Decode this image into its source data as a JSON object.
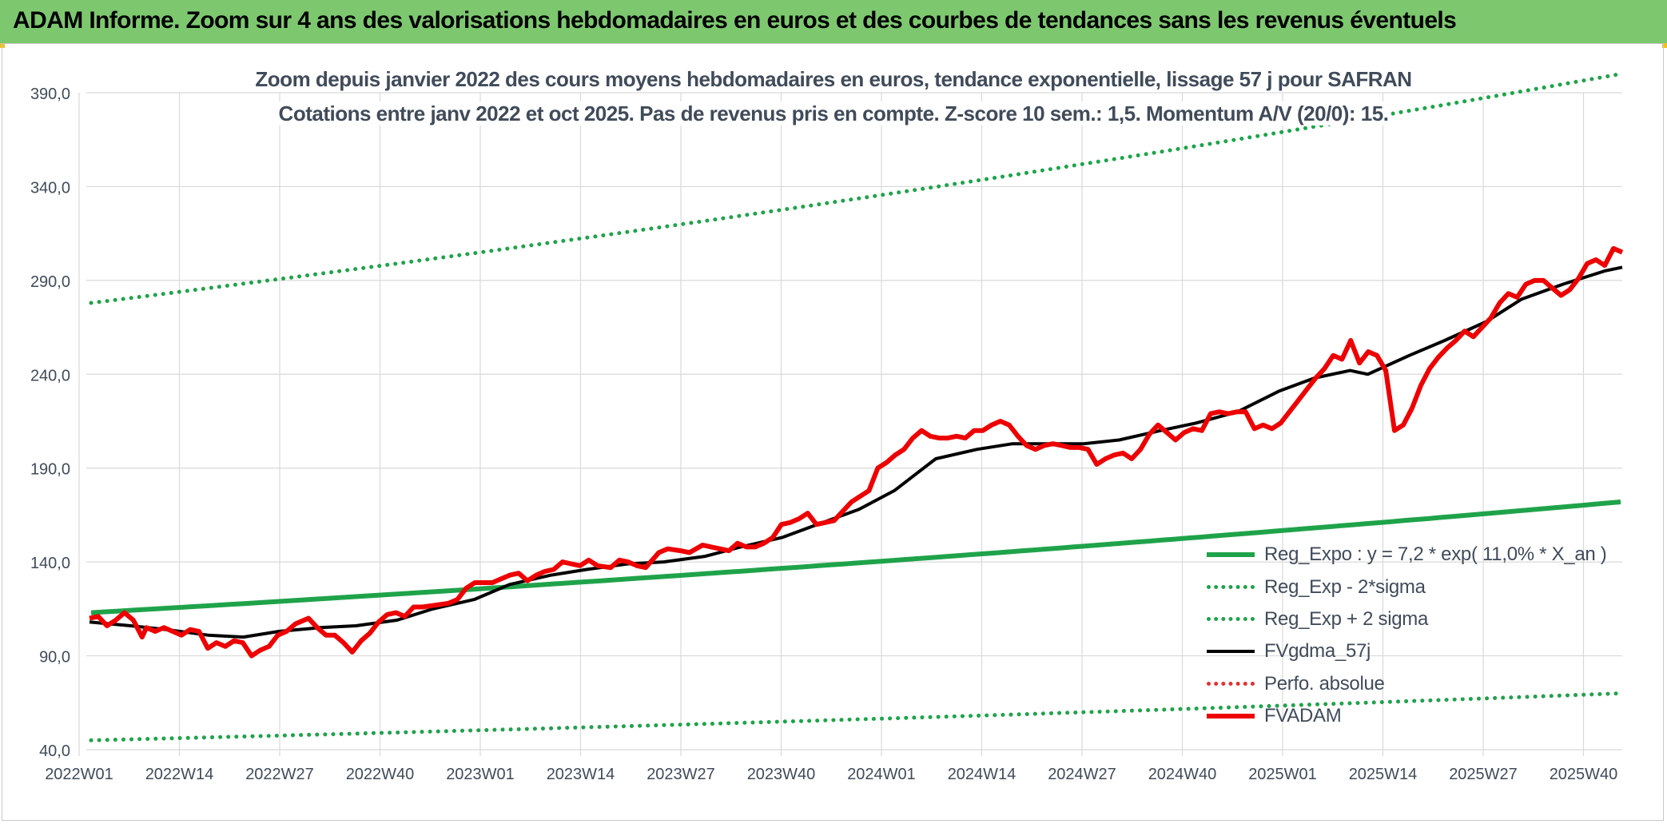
{
  "banner": {
    "title": "ADAM Informe. Zoom sur 4 ans des valorisations hebdomadaires en euros et des courbes de tendances sans les revenus éventuels",
    "color": "#7dc86f"
  },
  "chart_data": {
    "type": "line",
    "title": "Zoom depuis janvier 2022 des cours moyens hebdomadaires en euros, tendance exponentielle, lissage 57 j pour SAFRAN",
    "subtitle": "Cotations entre janv 2022 et oct 2025. Pas de revenus pris en compte. Z-score 10 sem.: 1,5. Momentum A/V (20/0): 15.",
    "xlabel": "",
    "ylabel": "",
    "ylim": [
      40,
      400
    ],
    "y_ticks": [
      "40,0",
      "90,0",
      "140,0",
      "190,0",
      "240,0",
      "290,0",
      "340,0",
      "390,0"
    ],
    "y_tick_values": [
      40,
      90,
      140,
      190,
      240,
      290,
      340,
      390
    ],
    "x_tick_labels": [
      "2022W01",
      "2022W14",
      "2022W27",
      "2022W40",
      "2023W01",
      "2023W14",
      "2023W27",
      "2023W40",
      "2024W01",
      "2024W14",
      "2024W27",
      "2024W40",
      "2025W01",
      "2025W14",
      "2025W27",
      "2025W40"
    ],
    "grid": true,
    "legend_position": "bottom-right",
    "weeks_total": 198,
    "series": [
      {
        "name": "Reg_Expo : y = 7,2 * exp( 11,0% *  X_an )",
        "color": "#1fa34a",
        "style": "solid-thick",
        "start": 113,
        "end": 172,
        "log_linear": true
      },
      {
        "name": "Reg_Exp - 2*sigma",
        "color": "#1fa34a",
        "style": "dotted",
        "start": 45,
        "end": 70,
        "log_linear": true
      },
      {
        "name": "Reg_Exp + 2 sigma",
        "color": "#1fa34a",
        "style": "dotted",
        "start": 278,
        "end": 400,
        "cap": 400,
        "log_linear": true
      },
      {
        "name": "FVgdma_57j",
        "color": "#000000",
        "style": "solid",
        "points": [
          [
            0,
            108
          ],
          [
            7,
            106
          ],
          [
            13,
            104
          ],
          [
            20,
            101
          ],
          [
            26,
            100
          ],
          [
            32,
            103
          ],
          [
            39,
            105
          ],
          [
            45,
            106
          ],
          [
            52,
            109
          ],
          [
            58,
            115
          ],
          [
            65,
            120
          ],
          [
            71,
            128
          ],
          [
            78,
            133
          ],
          [
            84,
            136
          ],
          [
            91,
            139
          ],
          [
            97,
            140
          ],
          [
            104,
            143
          ],
          [
            110,
            148
          ],
          [
            117,
            153
          ],
          [
            123,
            160
          ],
          [
            130,
            168
          ],
          [
            136,
            178
          ],
          [
            143,
            195
          ],
          [
            150,
            200
          ],
          [
            156,
            203
          ],
          [
            162,
            203
          ],
          [
            168,
            203
          ],
          [
            174,
            205
          ],
          [
            181,
            210
          ],
          [
            187,
            214
          ],
          [
            194,
            220
          ],
          [
            201,
            231
          ],
          [
            207,
            238
          ],
          [
            213,
            242
          ],
          [
            216,
            240
          ],
          [
            223,
            250
          ],
          [
            229,
            258
          ],
          [
            236,
            268
          ],
          [
            242,
            280
          ],
          [
            249,
            288
          ],
          [
            256,
            295
          ],
          [
            259,
            297
          ]
        ]
      },
      {
        "name": "Perfo. absolue",
        "color": "#e53030",
        "style": "dotted",
        "points": []
      },
      {
        "name": "FVADAM",
        "color": "#ee0000",
        "style": "solid-thick",
        "points": [
          [
            0,
            110
          ],
          [
            2,
            111
          ],
          [
            4,
            106
          ],
          [
            6,
            109
          ],
          [
            8,
            113
          ],
          [
            10,
            109
          ],
          [
            12,
            100
          ],
          [
            13,
            105
          ],
          [
            15,
            103
          ],
          [
            17,
            105
          ],
          [
            19,
            103
          ],
          [
            21,
            101
          ],
          [
            23,
            104
          ],
          [
            25,
            103
          ],
          [
            27,
            94
          ],
          [
            29,
            97
          ],
          [
            31,
            95
          ],
          [
            33,
            98
          ],
          [
            35,
            97
          ],
          [
            37,
            90
          ],
          [
            39,
            93
          ],
          [
            41,
            95
          ],
          [
            43,
            101
          ],
          [
            45,
            103
          ],
          [
            47,
            107
          ],
          [
            50,
            110
          ],
          [
            52,
            105
          ],
          [
            54,
            101
          ],
          [
            56,
            101
          ],
          [
            58,
            97
          ],
          [
            60,
            92
          ],
          [
            62,
            98
          ],
          [
            64,
            102
          ],
          [
            66,
            108
          ],
          [
            68,
            112
          ],
          [
            70,
            113
          ],
          [
            72,
            111
          ],
          [
            74,
            116
          ],
          [
            76,
            116
          ],
          [
            79,
            117
          ],
          [
            82,
            118
          ],
          [
            84,
            120
          ],
          [
            86,
            126
          ],
          [
            88,
            129
          ],
          [
            90,
            129
          ],
          [
            92,
            129
          ],
          [
            94,
            131
          ],
          [
            96,
            133
          ],
          [
            98,
            134
          ],
          [
            100,
            130
          ],
          [
            102,
            133
          ],
          [
            104,
            135
          ],
          [
            106,
            136
          ],
          [
            108,
            140
          ],
          [
            110,
            139
          ],
          [
            112,
            138
          ],
          [
            114,
            141
          ],
          [
            116,
            138
          ],
          [
            119,
            137
          ],
          [
            121,
            141
          ],
          [
            123,
            140
          ],
          [
            125,
            138
          ],
          [
            127,
            137
          ],
          [
            130,
            145
          ],
          [
            132,
            147
          ],
          [
            135,
            146
          ],
          [
            137,
            145
          ],
          [
            140,
            149
          ],
          [
            142,
            148
          ],
          [
            144,
            147
          ],
          [
            146,
            146
          ],
          [
            148,
            150
          ],
          [
            150,
            148
          ],
          [
            152,
            148
          ],
          [
            154,
            150
          ],
          [
            156,
            153
          ],
          [
            158,
            160
          ],
          [
            160,
            161
          ],
          [
            162,
            163
          ],
          [
            164,
            166
          ],
          [
            166,
            160
          ],
          [
            168,
            161
          ],
          [
            170,
            162
          ],
          [
            172,
            167
          ],
          [
            174,
            172
          ],
          [
            176,
            175
          ],
          [
            178,
            178
          ],
          [
            180,
            190
          ],
          [
            182,
            193
          ],
          [
            184,
            197
          ],
          [
            186,
            200
          ],
          [
            188,
            206
          ],
          [
            190,
            210
          ],
          [
            192,
            207
          ],
          [
            194,
            206
          ],
          [
            196,
            206
          ],
          [
            198,
            207
          ],
          [
            200,
            206
          ],
          [
            202,
            210
          ],
          [
            204,
            210
          ],
          [
            206,
            213
          ],
          [
            208,
            215
          ],
          [
            210,
            213
          ],
          [
            212,
            207
          ],
          [
            214,
            202
          ],
          [
            216,
            200
          ],
          [
            218,
            202
          ],
          [
            220,
            203
          ],
          [
            222,
            202
          ],
          [
            224,
            201
          ],
          [
            226,
            201
          ],
          [
            228,
            200
          ],
          [
            230,
            192
          ],
          [
            232,
            195
          ],
          [
            234,
            197
          ],
          [
            236,
            198
          ],
          [
            238,
            195
          ],
          [
            240,
            200
          ],
          [
            242,
            208
          ],
          [
            244,
            213
          ],
          [
            246,
            209
          ],
          [
            248,
            205
          ],
          [
            250,
            209
          ],
          [
            252,
            211
          ],
          [
            254,
            210
          ],
          [
            256,
            219
          ],
          [
            258,
            220
          ],
          [
            260,
            219
          ],
          [
            262,
            220
          ],
          [
            264,
            220
          ],
          [
            266,
            211
          ],
          [
            268,
            213
          ],
          [
            270,
            211
          ],
          [
            272,
            214
          ],
          [
            274,
            220
          ],
          [
            276,
            226
          ],
          [
            278,
            232
          ],
          [
            280,
            238
          ],
          [
            282,
            243
          ],
          [
            284,
            250
          ],
          [
            286,
            248
          ],
          [
            288,
            258
          ],
          [
            290,
            246
          ],
          [
            292,
            252
          ],
          [
            294,
            250
          ],
          [
            296,
            242
          ],
          [
            298,
            210
          ],
          [
            300,
            213
          ],
          [
            302,
            222
          ],
          [
            304,
            234
          ],
          [
            306,
            243
          ],
          [
            308,
            249
          ],
          [
            310,
            254
          ],
          [
            312,
            258
          ],
          [
            314,
            263
          ],
          [
            316,
            260
          ],
          [
            318,
            265
          ],
          [
            320,
            270
          ],
          [
            322,
            278
          ],
          [
            324,
            283
          ],
          [
            326,
            281
          ],
          [
            328,
            288
          ],
          [
            330,
            290
          ],
          [
            332,
            290
          ],
          [
            334,
            286
          ],
          [
            336,
            282
          ],
          [
            338,
            285
          ],
          [
            340,
            291
          ],
          [
            342,
            299
          ],
          [
            344,
            301
          ],
          [
            346,
            298
          ],
          [
            348,
            307
          ],
          [
            350,
            305
          ]
        ]
      }
    ]
  }
}
